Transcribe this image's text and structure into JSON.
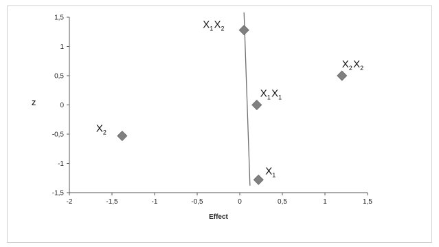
{
  "chart_data": {
    "type": "scatter",
    "title": "",
    "xlabel": "Effect",
    "ylabel": "Z",
    "xlim": [
      -2,
      1.5
    ],
    "ylim": [
      -1.5,
      1.5
    ],
    "x_ticks": [
      -2,
      -1.5,
      -1,
      -0.5,
      0,
      0.5,
      1,
      1.5
    ],
    "x_tick_labels": [
      "-2",
      "-1,5",
      "-1",
      "-0,5",
      "0",
      "0,5",
      "1",
      "1,5"
    ],
    "y_ticks": [
      -1.5,
      -1,
      -0.5,
      0,
      0.5,
      1,
      1.5
    ],
    "y_tick_labels": [
      "-1,5",
      "-1",
      "-0,5",
      "0",
      "0,5",
      "1",
      "1,5"
    ],
    "grid": false,
    "legend": "none",
    "marker_color": "#808080",
    "line_color": "#6e6e6e",
    "points": [
      {
        "label": "X1X2",
        "label_parts": [
          {
            "t": "X",
            "s": "1"
          },
          {
            "t": "X",
            "s": "2"
          }
        ],
        "x": 0.05,
        "y": 1.28
      },
      {
        "label": "X2X2",
        "label_parts": [
          {
            "t": "X",
            "s": "2"
          },
          {
            "t": "X",
            "s": "2"
          }
        ],
        "x": 1.2,
        "y": 0.5
      },
      {
        "label": "X1X1",
        "label_parts": [
          {
            "t": "X",
            "s": "1"
          },
          {
            "t": "X",
            "s": "1"
          }
        ],
        "x": 0.2,
        "y": 0.0
      },
      {
        "label": "X2",
        "label_parts": [
          {
            "t": "X",
            "s": "2"
          }
        ],
        "x": -1.38,
        "y": -0.53
      },
      {
        "label": "X1",
        "label_parts": [
          {
            "t": "X",
            "s": "1"
          }
        ],
        "x": 0.22,
        "y": -1.28
      }
    ],
    "reference_line": {
      "from": [
        0.05,
        1.58
      ],
      "to": [
        0.12,
        -1.38
      ]
    }
  }
}
